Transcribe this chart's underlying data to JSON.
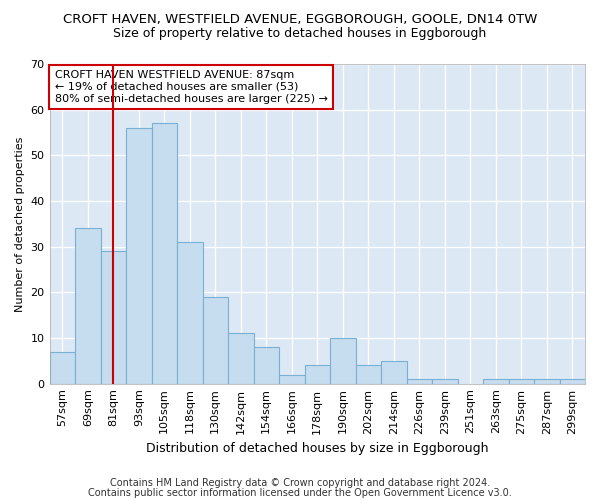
{
  "title1": "CROFT HAVEN, WESTFIELD AVENUE, EGGBOROUGH, GOOLE, DN14 0TW",
  "title2": "Size of property relative to detached houses in Eggborough",
  "xlabel": "Distribution of detached houses by size in Eggborough",
  "ylabel": "Number of detached properties",
  "categories": [
    "57sqm",
    "69sqm",
    "81sqm",
    "93sqm",
    "105sqm",
    "118sqm",
    "130sqm",
    "142sqm",
    "154sqm",
    "166sqm",
    "178sqm",
    "190sqm",
    "202sqm",
    "214sqm",
    "226sqm",
    "239sqm",
    "251sqm",
    "263sqm",
    "275sqm",
    "287sqm",
    "299sqm"
  ],
  "values": [
    7,
    34,
    29,
    56,
    57,
    31,
    19,
    11,
    8,
    2,
    4,
    10,
    4,
    5,
    1,
    1,
    0,
    1,
    1,
    1,
    1
  ],
  "bar_color": "#c6dcef",
  "bar_edge_color": "#7ab0d4",
  "vline_x": 2.0,
  "vline_color": "#cc0000",
  "annotation_text": "CROFT HAVEN WESTFIELD AVENUE: 87sqm\n← 19% of detached houses are smaller (53)\n80% of semi-detached houses are larger (225) →",
  "annotation_box_color": "white",
  "annotation_box_edge": "#cc0000",
  "ylim": [
    0,
    70
  ],
  "yticks": [
    0,
    10,
    20,
    30,
    40,
    50,
    60,
    70
  ],
  "footer1": "Contains HM Land Registry data © Crown copyright and database right 2024.",
  "footer2": "Contains public sector information licensed under the Open Government Licence v3.0.",
  "bg_color": "#ffffff",
  "plot_bg_color": "#dce9f5",
  "title1_fontsize": 9.5,
  "title2_fontsize": 9,
  "xlabel_fontsize": 9,
  "ylabel_fontsize": 8,
  "tick_fontsize": 8,
  "footer_fontsize": 7,
  "annotation_fontsize": 8
}
